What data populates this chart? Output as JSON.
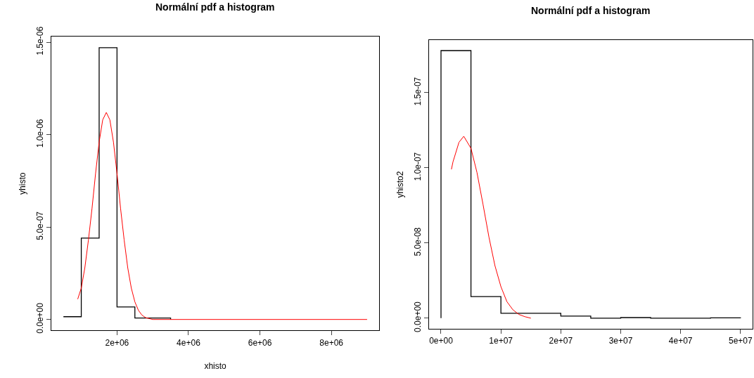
{
  "chart_data": [
    {
      "type": "step",
      "title": "Normální pdf a histogram",
      "xlabel": "xhisto",
      "ylabel": "yhisto",
      "xlim": [
        160000,
        9340000
      ],
      "ylim": [
        -5.9e-08,
        1.53e-06
      ],
      "xticks": [
        {
          "value": 2000000,
          "label": "2e+06"
        },
        {
          "value": 4000000,
          "label": "4e+06"
        },
        {
          "value": 6000000,
          "label": "6e+06"
        },
        {
          "value": 8000000,
          "label": "8e+06"
        }
      ],
      "yticks": [
        {
          "value": 0,
          "label": "0.0e+00"
        },
        {
          "value": 5e-07,
          "label": "5.0e-07"
        },
        {
          "value": 1e-06,
          "label": "1.0e-06"
        },
        {
          "value": 1.5e-06,
          "label": "1.5e-06"
        }
      ],
      "series": [
        {
          "color": "#000000",
          "x": [
            500000,
            1000000,
            1500000,
            2000000,
            2500000,
            3000000,
            3500000
          ],
          "values": [
            1.5e-08,
            4.4e-07,
            1.47e-06,
            6.8e-08,
            8e-09,
            8e-09,
            0
          ]
        },
        {
          "type": "line",
          "color": "#ff0000",
          "x": [
            900000,
            1000000,
            1100000,
            1200000,
            1300000,
            1400000,
            1500000,
            1600000,
            1700000,
            1800000,
            1900000,
            2000000,
            2100000,
            2200000,
            2300000,
            2400000,
            2500000,
            2600000,
            2700000,
            2800000,
            3000000,
            9000000
          ],
          "values": [
            1.1e-07,
            1.7e-07,
            2.8e-07,
            4.3e-07,
            6e-07,
            7.9e-07,
            9.6e-07,
            1.08e-06,
            1.12e-06,
            1.08e-06,
            9.6e-07,
            7.9e-07,
            6e-07,
            4.3e-07,
            2.8e-07,
            1.7e-07,
            9.5e-08,
            4.9e-08,
            2.3e-08,
            1e-08,
            0,
            0
          ]
        }
      ]
    },
    {
      "type": "step",
      "title": "Normální pdf a histogram",
      "ylabel": "yhisto2",
      "xlim": [
        -2000000,
        52000000
      ],
      "ylim": [
        -7.1e-09,
        1.85e-07
      ],
      "xticks": [
        {
          "value": 0,
          "label": "0e+00"
        },
        {
          "value": 10000000,
          "label": "1e+07"
        },
        {
          "value": 20000000,
          "label": "2e+07"
        },
        {
          "value": 30000000,
          "label": "3e+07"
        },
        {
          "value": 40000000,
          "label": "4e+07"
        },
        {
          "value": 50000000,
          "label": "5e+07"
        }
      ],
      "yticks": [
        {
          "value": 0,
          "label": "0.0e+00"
        },
        {
          "value": 5e-08,
          "label": "5.0e-08"
        },
        {
          "value": 1e-07,
          "label": "1.0e-07"
        },
        {
          "value": 1.5e-07,
          "label": "1.5e-07"
        }
      ],
      "series": [
        {
          "color": "#000000",
          "x": [
            0,
            0,
            5000000,
            10000000,
            15000000,
            20000000,
            25000000,
            30000000,
            35000000,
            40000000,
            45000000,
            50000000
          ],
          "values": [
            0,
            1.78e-07,
            1.44e-08,
            3.3e-09,
            3.3e-09,
            1.4e-09,
            0,
            4e-10,
            0,
            0,
            2e-10,
            0
          ]
        },
        {
          "type": "line",
          "color": "#ff0000",
          "x": [
            1740000,
            2000000,
            3000000,
            3800000,
            5000000,
            6000000,
            7000000,
            8000000,
            9000000,
            10000000,
            11000000,
            12000000,
            13000000,
            14000000,
            15000000
          ],
          "values": [
            9.9e-08,
            1.04e-07,
            1.17e-07,
            1.21e-07,
            1.13e-07,
            9.7e-08,
            7.6e-08,
            5.4e-08,
            3.5e-08,
            2.1e-08,
            1.1e-08,
            5.6e-09,
            2.5e-09,
            1e-09,
            0
          ]
        }
      ]
    }
  ]
}
